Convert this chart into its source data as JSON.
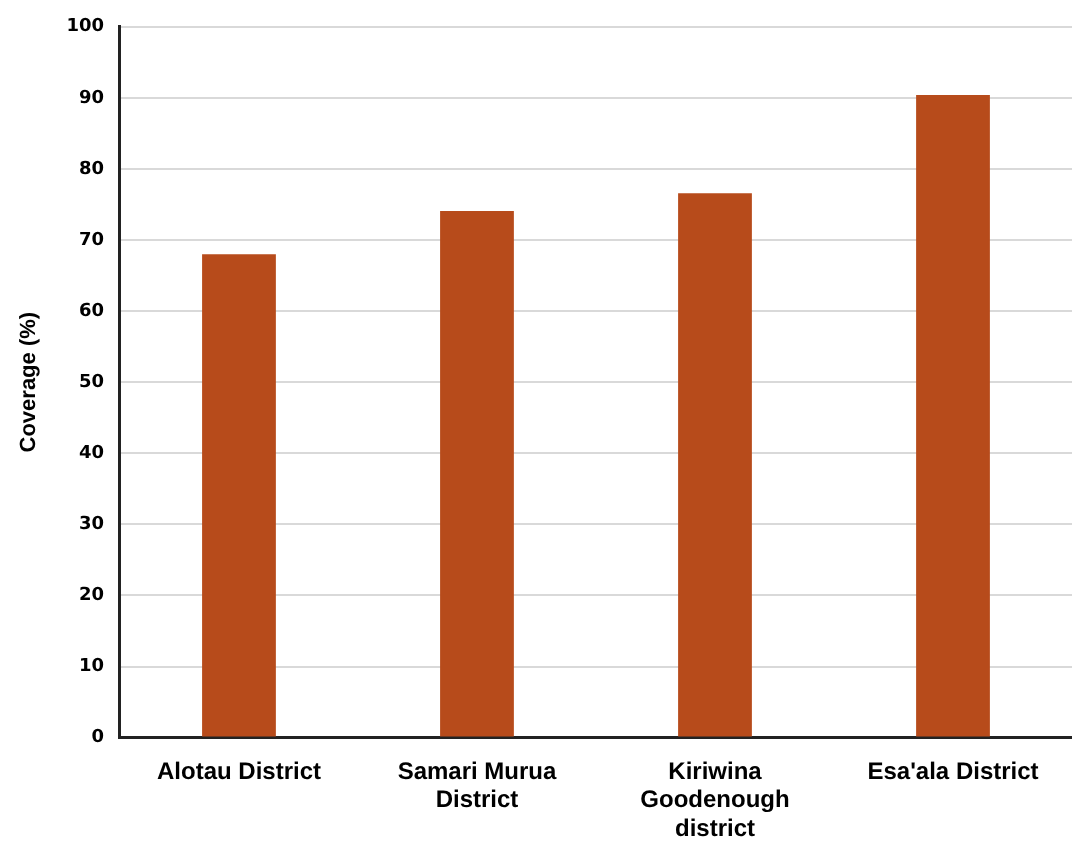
{
  "chart_data": {
    "type": "bar",
    "ylabel": "Coverage (%)",
    "categories": [
      "Alotau District",
      "Samari Murua District",
      "Kiriwina Goodenough district",
      "Esa'ala District"
    ],
    "values": [
      68,
      74.1,
      76.6,
      90.4
    ],
    "color": "#b74b1b",
    "ylim": [
      0,
      100
    ],
    "yticks": [
      0,
      10,
      20,
      30,
      40,
      50,
      60,
      70,
      80,
      90,
      100
    ],
    "grid": "y",
    "legend": false
  }
}
